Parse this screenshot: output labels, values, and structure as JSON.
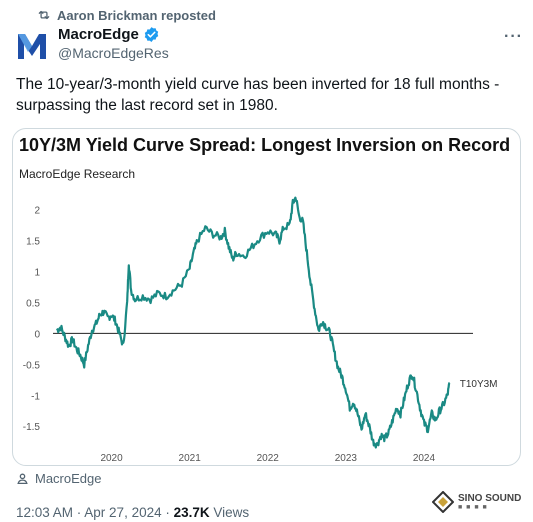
{
  "repost": {
    "label": "Aaron Brickman reposted",
    "icon": "repost-icon"
  },
  "author": {
    "name": "MacroEdge",
    "handle": "@MacroEdgeRes",
    "verified_color": "#1d9bf0",
    "avatar_letter": "M",
    "avatar_color": "#1f4fa8"
  },
  "tweet": {
    "text": "The 10-year/3-month yield curve has been inverted for 18 full months - surpassing the last record set in 1980."
  },
  "chart_data": {
    "type": "line",
    "title": "10Y/3M Yield Curve Spread: Longest Inversion on Record",
    "subtitle": "MacroEdge Research",
    "xlabel": "",
    "ylabel": "",
    "x_ticks": [
      "2020",
      "2021",
      "2022",
      "2023",
      "2024"
    ],
    "y_ticks": [
      "2",
      "1.5",
      "1",
      "0.5",
      "0",
      "-0.5",
      "-1",
      "-1.5"
    ],
    "ylim": [
      -1.9,
      2.3
    ],
    "xlim": [
      2019.25,
      2024.5
    ],
    "series": [
      {
        "name": "T10Y3M",
        "color": "#1a8a84",
        "points": [
          [
            2019.3,
            0.05
          ],
          [
            2019.35,
            0.1
          ],
          [
            2019.4,
            -0.05
          ],
          [
            2019.45,
            -0.2
          ],
          [
            2019.5,
            -0.1
          ],
          [
            2019.55,
            -0.25
          ],
          [
            2019.6,
            -0.35
          ],
          [
            2019.65,
            -0.5
          ],
          [
            2019.7,
            -0.2
          ],
          [
            2019.75,
            0.05
          ],
          [
            2019.8,
            0.15
          ],
          [
            2019.85,
            0.3
          ],
          [
            2019.9,
            0.35
          ],
          [
            2019.95,
            0.25
          ],
          [
            2020.0,
            0.3
          ],
          [
            2020.05,
            0.2
          ],
          [
            2020.1,
            0.0
          ],
          [
            2020.15,
            -0.2
          ],
          [
            2020.2,
            0.5
          ],
          [
            2020.22,
            1.15
          ],
          [
            2020.25,
            0.7
          ],
          [
            2020.3,
            0.55
          ],
          [
            2020.4,
            0.6
          ],
          [
            2020.5,
            0.55
          ],
          [
            2020.6,
            0.65
          ],
          [
            2020.7,
            0.6
          ],
          [
            2020.8,
            0.7
          ],
          [
            2020.9,
            0.8
          ],
          [
            2021.0,
            1.05
          ],
          [
            2021.05,
            1.3
          ],
          [
            2021.1,
            1.5
          ],
          [
            2021.2,
            1.7
          ],
          [
            2021.3,
            1.6
          ],
          [
            2021.4,
            1.55
          ],
          [
            2021.45,
            1.65
          ],
          [
            2021.5,
            1.4
          ],
          [
            2021.55,
            1.2
          ],
          [
            2021.6,
            1.3
          ],
          [
            2021.7,
            1.25
          ],
          [
            2021.8,
            1.4
          ],
          [
            2021.9,
            1.55
          ],
          [
            2022.0,
            1.65
          ],
          [
            2022.1,
            1.6
          ],
          [
            2022.15,
            1.5
          ],
          [
            2022.2,
            1.7
          ],
          [
            2022.28,
            1.75
          ],
          [
            2022.32,
            2.1
          ],
          [
            2022.36,
            2.2
          ],
          [
            2022.4,
            1.9
          ],
          [
            2022.45,
            1.8
          ],
          [
            2022.5,
            1.3
          ],
          [
            2022.55,
            0.8
          ],
          [
            2022.6,
            0.4
          ],
          [
            2022.65,
            0.05
          ],
          [
            2022.7,
            0.2
          ],
          [
            2022.75,
            0.1
          ],
          [
            2022.8,
            0.0
          ],
          [
            2022.85,
            -0.3
          ],
          [
            2022.9,
            -0.55
          ],
          [
            2022.95,
            -0.7
          ],
          [
            2023.0,
            -0.9
          ],
          [
            2023.05,
            -1.2
          ],
          [
            2023.1,
            -1.1
          ],
          [
            2023.15,
            -1.3
          ],
          [
            2023.2,
            -1.55
          ],
          [
            2023.25,
            -1.3
          ],
          [
            2023.3,
            -1.5
          ],
          [
            2023.35,
            -1.75
          ],
          [
            2023.4,
            -1.8
          ],
          [
            2023.45,
            -1.65
          ],
          [
            2023.5,
            -1.7
          ],
          [
            2023.55,
            -1.6
          ],
          [
            2023.6,
            -1.4
          ],
          [
            2023.65,
            -1.2
          ],
          [
            2023.7,
            -1.3
          ],
          [
            2023.75,
            -1.05
          ],
          [
            2023.8,
            -0.8
          ],
          [
            2023.85,
            -0.65
          ],
          [
            2023.9,
            -0.9
          ],
          [
            2023.95,
            -1.2
          ],
          [
            2024.0,
            -1.45
          ],
          [
            2024.05,
            -1.55
          ],
          [
            2024.1,
            -1.3
          ],
          [
            2024.15,
            -1.4
          ],
          [
            2024.2,
            -1.25
          ],
          [
            2024.25,
            -1.15
          ],
          [
            2024.3,
            -1.0
          ],
          [
            2024.33,
            -0.8
          ]
        ]
      }
    ],
    "zero_line": true,
    "grid": false,
    "legend": "end-of-line label"
  },
  "source": {
    "label": "MacroEdge"
  },
  "meta": {
    "time": "12:03 AM · Apr 27, 2024 · ",
    "views_count": "23.7K",
    "views_label": " Views"
  },
  "watermark": {
    "text": "SINO SOUND"
  }
}
